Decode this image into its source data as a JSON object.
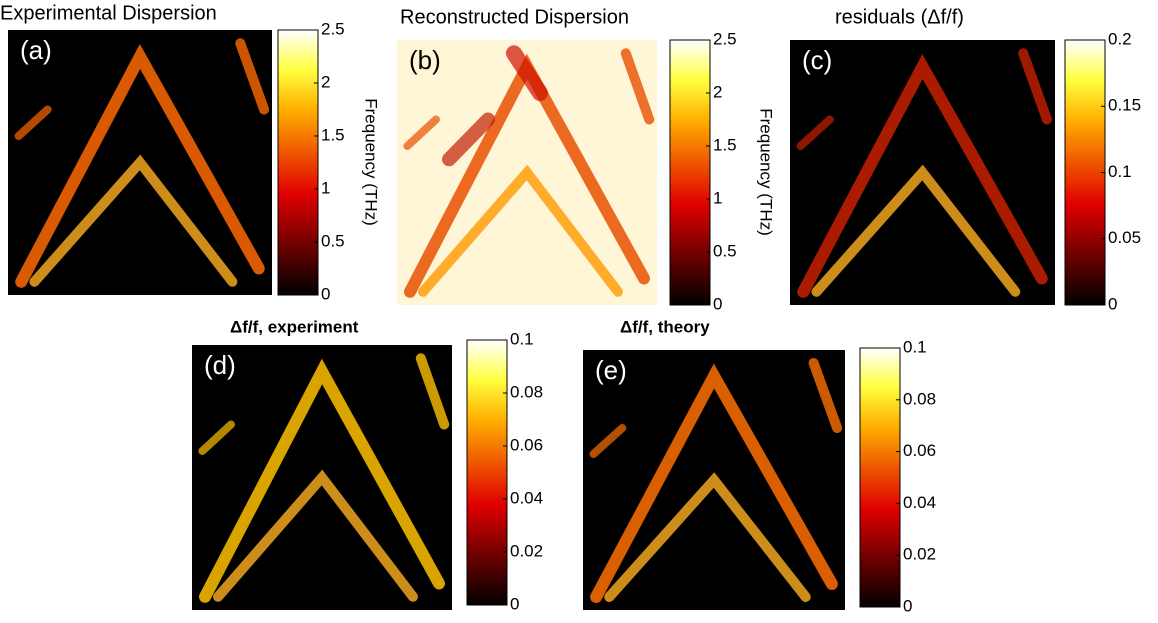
{
  "chart_data": [
    {
      "type": "heatmap",
      "title": "Experimental Dispersion",
      "panel_label": "(a)",
      "colorbar_label": "Frequency (THz)",
      "clim": [
        0,
        2.5
      ],
      "cbar_ticks": [
        0,
        0.5,
        1,
        1.5,
        2,
        2.5
      ],
      "colormap": "hot"
    },
    {
      "type": "heatmap",
      "title": "Reconstructed Dispersion",
      "panel_label": "(b)",
      "colorbar_label": "Frequency (THz)",
      "clim": [
        0,
        2.5
      ],
      "cbar_ticks": [
        0,
        0.5,
        1,
        1.5,
        2,
        2.5
      ],
      "colormap": "hot"
    },
    {
      "type": "heatmap",
      "title": "residuals (Δf/f)",
      "panel_label": "(c)",
      "clim": [
        0,
        0.2
      ],
      "cbar_ticks": [
        0,
        0.05,
        0.1,
        0.15,
        0.2
      ],
      "colormap": "hot"
    },
    {
      "type": "heatmap",
      "title": "Δf/f, experiment",
      "panel_label": "(d)",
      "clim": [
        0,
        0.1
      ],
      "cbar_ticks": [
        0,
        0.02,
        0.04,
        0.06,
        0.08,
        0.1
      ],
      "colormap": "hot"
    },
    {
      "type": "heatmap",
      "title": "Δf/f, theory",
      "panel_label": "(e)",
      "clim": [
        0,
        0.1
      ],
      "cbar_ticks": [
        0,
        0.02,
        0.04,
        0.06,
        0.08,
        0.1
      ],
      "colormap": "hot"
    }
  ]
}
